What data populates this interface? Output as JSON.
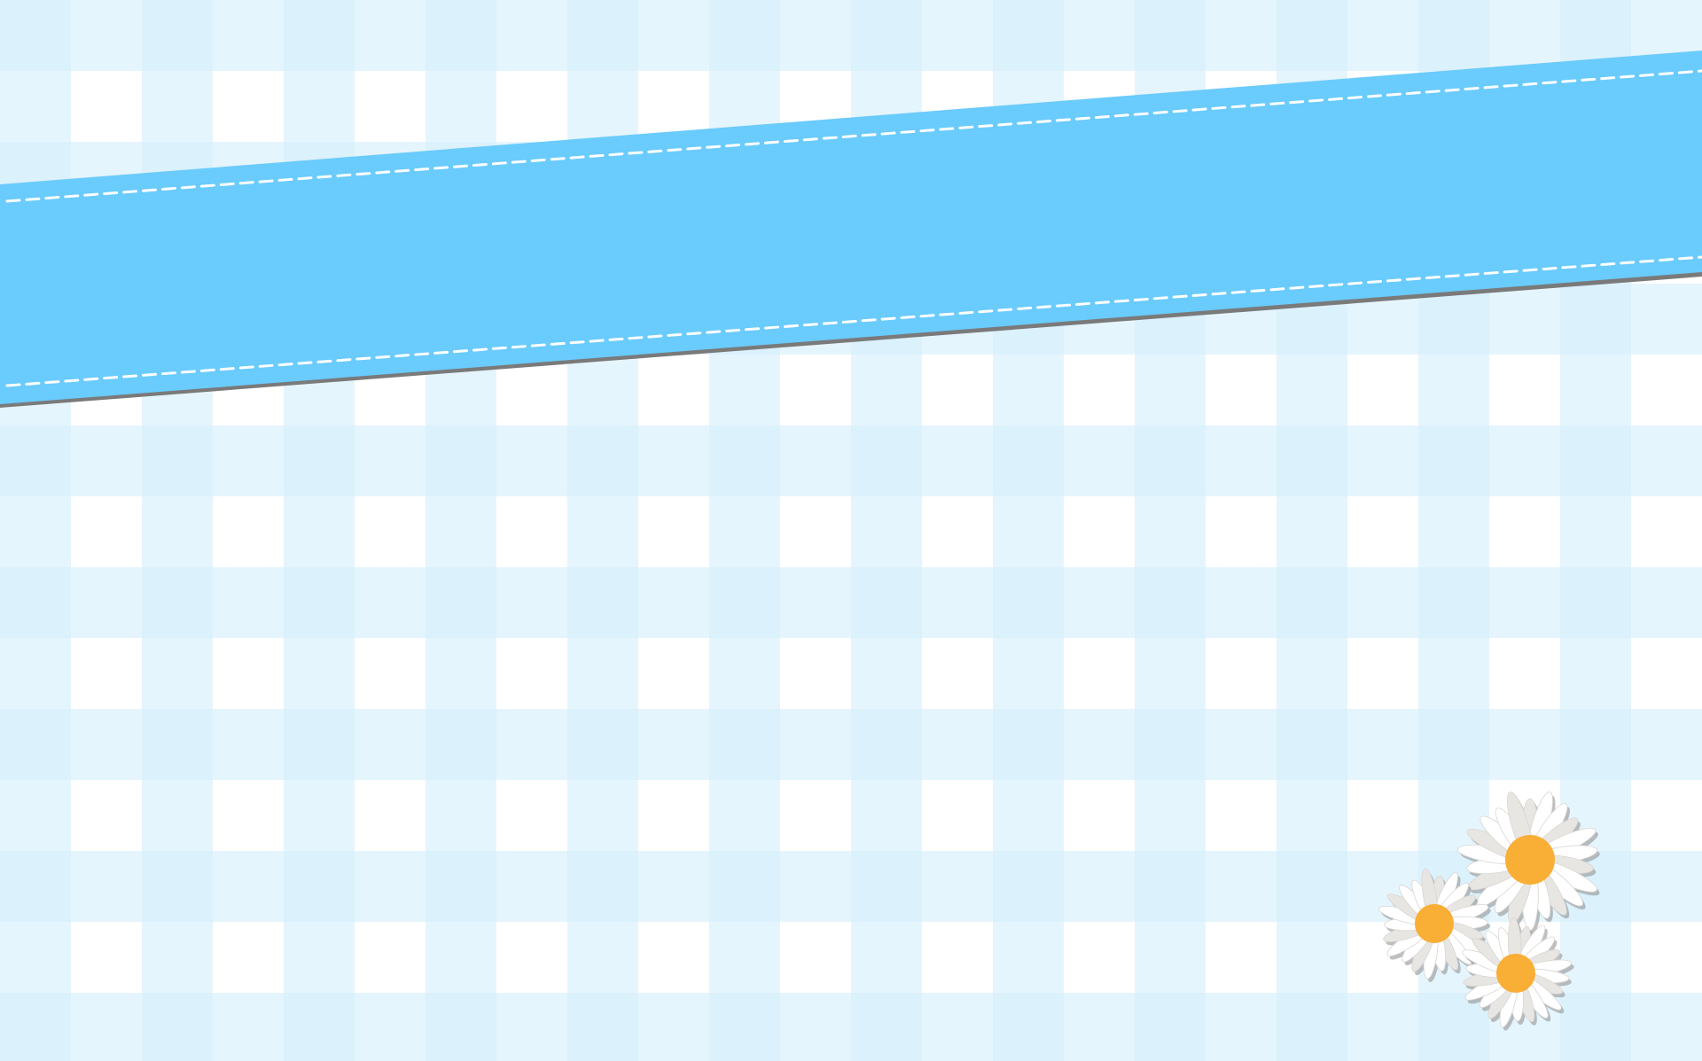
{
  "background": {
    "pattern": "gingham-check",
    "colors": {
      "base": "#ffffff",
      "stripe": "#d3eefc",
      "crossing": "#bfe3f7"
    }
  },
  "banner": {
    "fill": "#6acbfd",
    "edge_shadow": "#7a7a7a",
    "stitch_color": "#ffffff",
    "text": ""
  },
  "decoration": {
    "icon": "daisy-flower-icon",
    "count": 3,
    "petal_color": "#ffffff",
    "petal_shade": "#e8e6e3",
    "center_color": "#f9ae36"
  }
}
